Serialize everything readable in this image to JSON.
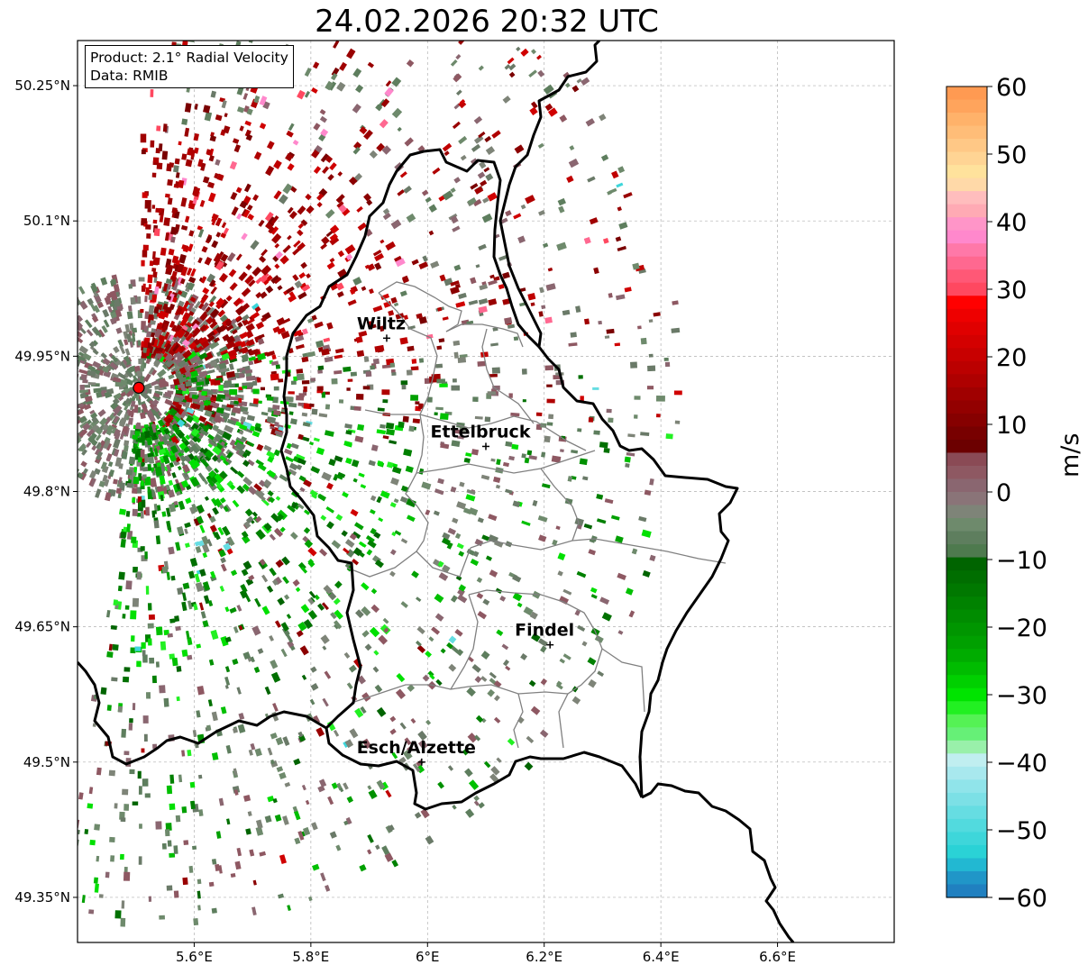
{
  "title": "24.02.2026 20:32 UTC",
  "info": {
    "product": "Product: 2.1° Radial Velocity",
    "data": "Data: RMIB"
  },
  "map": {
    "lon_range": [
      5.4,
      6.8
    ],
    "lat_range": [
      49.3,
      50.3
    ],
    "x_ticks": [
      {
        "value": 5.6,
        "label": "5.6°E"
      },
      {
        "value": 5.8,
        "label": "5.8°E"
      },
      {
        "value": 6.0,
        "label": "6°E"
      },
      {
        "value": 6.2,
        "label": "6.2°E"
      },
      {
        "value": 6.4,
        "label": "6.4°E"
      },
      {
        "value": 6.6,
        "label": "6.6°E"
      }
    ],
    "y_ticks": [
      {
        "value": 50.25,
        "label": "50.25°N"
      },
      {
        "value": 50.1,
        "label": "50.1°N"
      },
      {
        "value": 49.95,
        "label": "49.95°N"
      },
      {
        "value": 49.8,
        "label": "49.8°N"
      },
      {
        "value": 49.65,
        "label": "49.65°N"
      },
      {
        "value": 49.5,
        "label": "49.5°N"
      },
      {
        "value": 49.35,
        "label": "49.35°N"
      }
    ],
    "radar_site": {
      "lon": 5.505,
      "lat": 49.915
    },
    "cities": [
      {
        "name": "Wiltz",
        "lon": 5.93,
        "lat": 49.97
      },
      {
        "name": "Ettelbruck",
        "lon": 6.1,
        "lat": 49.85
      },
      {
        "name": "Findel",
        "lon": 6.21,
        "lat": 49.63
      },
      {
        "name": "Esch/Alzette",
        "lon": 5.99,
        "lat": 49.5
      }
    ]
  },
  "colorbar": {
    "label": "m/s",
    "min": -60,
    "max": 60,
    "ticks": [
      "60",
      "50",
      "40",
      "30",
      "20",
      "10",
      "0",
      "−10",
      "−20",
      "−30",
      "−40",
      "−50",
      "−60"
    ],
    "tick_values": [
      60,
      50,
      40,
      30,
      20,
      10,
      0,
      -10,
      -20,
      -30,
      -40,
      -50,
      -60
    ],
    "colors": [
      "#ff9a52",
      "#ffa45c",
      "#ffb26a",
      "#ffbd78",
      "#ffc886",
      "#ffd494",
      "#ffe29c",
      "#ffd9a8",
      "#ffbdbd",
      "#ffaab4",
      "#ff95c8",
      "#ff88cc",
      "#ff78a8",
      "#ff6890",
      "#ff5876",
      "#ff4860",
      "#ff0000",
      "#ee0000",
      "#e00000",
      "#d40000",
      "#c80000",
      "#bb0000",
      "#ae0000",
      "#a00000",
      "#930000",
      "#860000",
      "#780000",
      "#6c0000",
      "#8a4a55",
      "#8e5862",
      "#8a6670",
      "#8a7478",
      "#7e8478",
      "#6e8a6c",
      "#5e7e5e",
      "#4e7a4e",
      "#006400",
      "#006e00",
      "#007800",
      "#008200",
      "#008c00",
      "#009600",
      "#00a000",
      "#00ac00",
      "#00bc00",
      "#00d000",
      "#00e400",
      "#22f022",
      "#55f255",
      "#66f077",
      "#99f0aa",
      "#c0eef0",
      "#a8e8ee",
      "#90e4ea",
      "#7ce0e6",
      "#66dde2",
      "#52dade",
      "#3ed6da",
      "#2ad2d6",
      "#22b8d2",
      "#2096c8",
      "#2080c0"
    ]
  }
}
